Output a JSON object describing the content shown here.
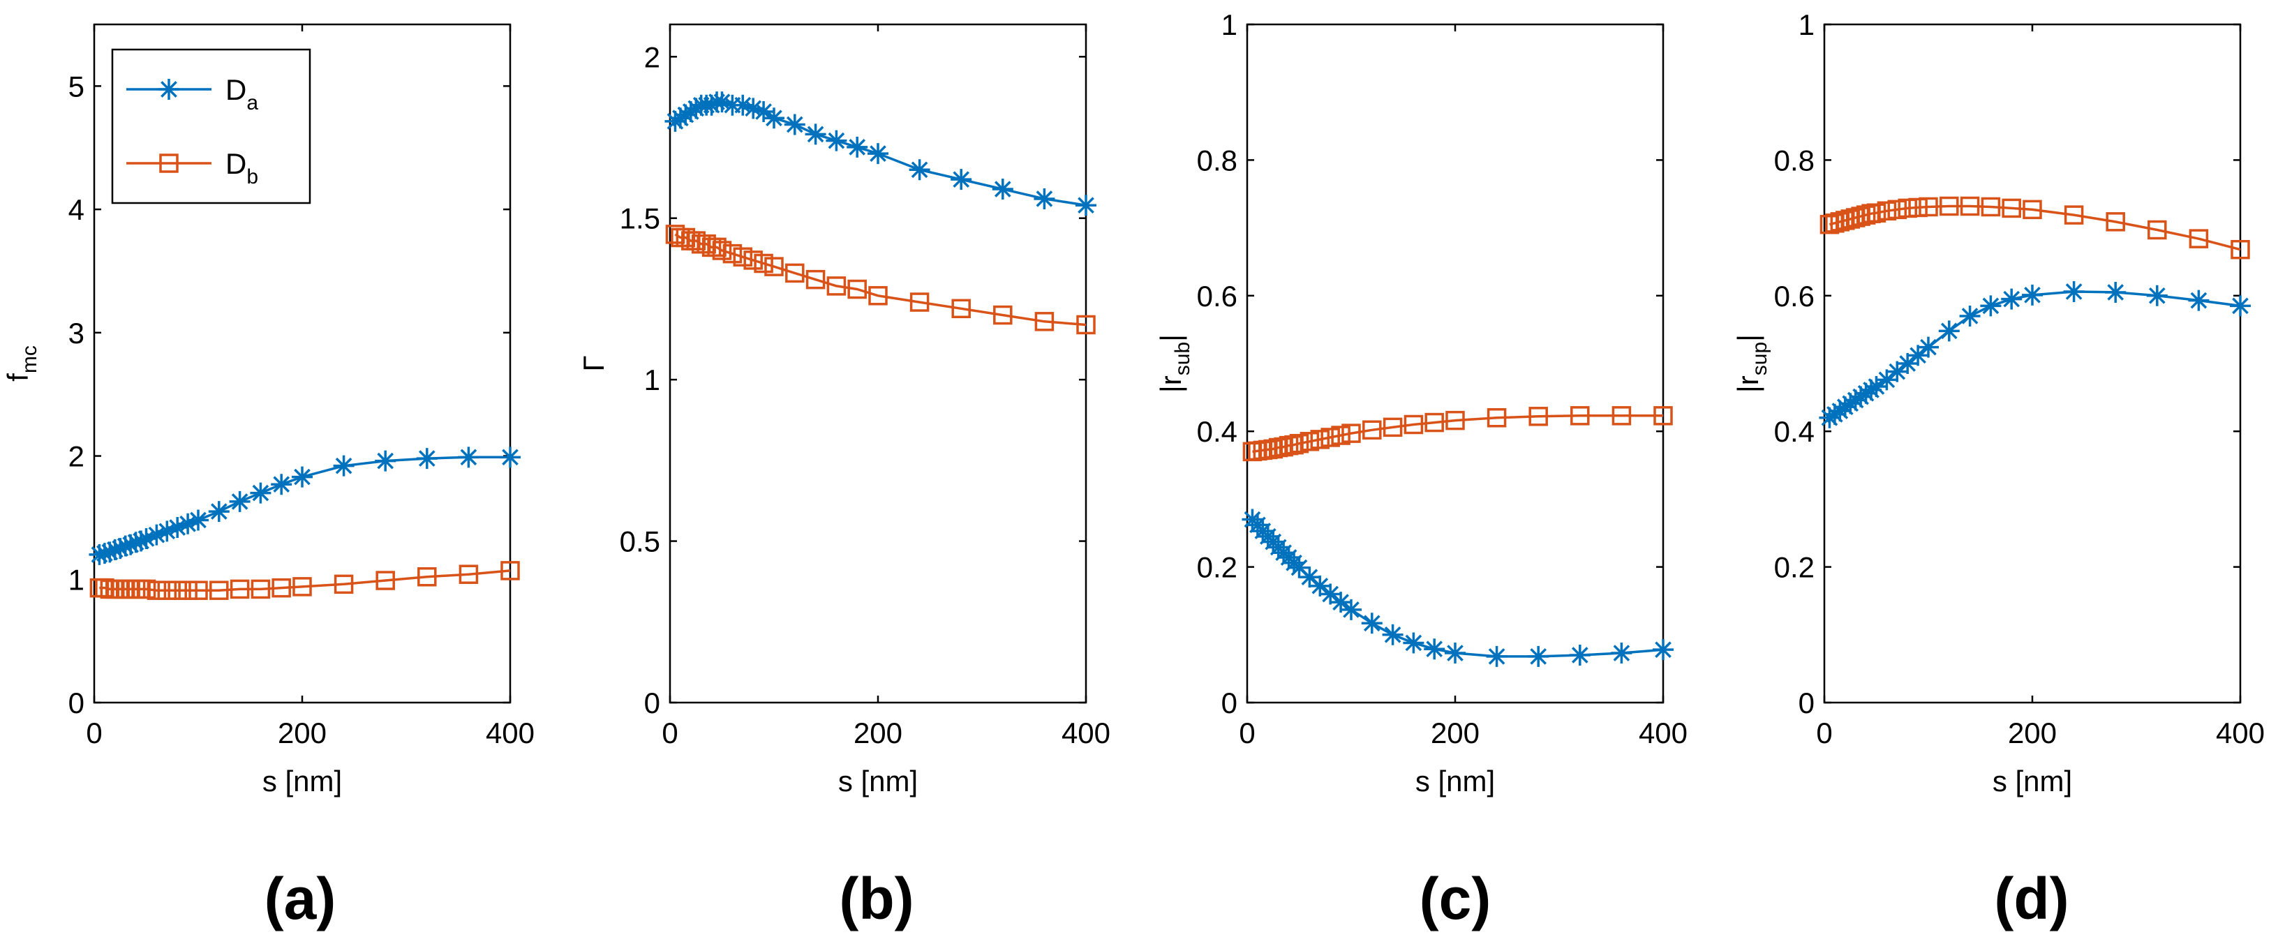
{
  "figure": {
    "panel_labels": [
      "(a)",
      "(b)",
      "(c)",
      "(d)"
    ]
  },
  "colors": {
    "series_a": "#0072BD",
    "series_b": "#D95319",
    "axis": "#000000"
  },
  "chart_data": [
    {
      "type": "line",
      "panel": "(a)",
      "xlabel": "s [nm]",
      "ylabel": {
        "main": "f",
        "sub": "mc"
      },
      "xlim": [
        0,
        400
      ],
      "ylim": [
        0,
        5.5
      ],
      "xticks": [
        0,
        200,
        400
      ],
      "yticks": [
        0,
        1,
        2,
        3,
        4,
        5
      ],
      "legend": {
        "placement": "top-left",
        "entries": [
          {
            "main": "D",
            "sub": "a",
            "marker": "asterisk"
          },
          {
            "main": "D",
            "sub": "b",
            "marker": "square"
          }
        ]
      },
      "series": [
        {
          "name": "D_a",
          "marker": "asterisk",
          "x": [
            5,
            10,
            15,
            20,
            25,
            30,
            35,
            40,
            45,
            50,
            60,
            70,
            80,
            90,
            100,
            120,
            140,
            160,
            180,
            200,
            240,
            280,
            320,
            360,
            400
          ],
          "y": [
            1.2,
            1.21,
            1.22,
            1.24,
            1.25,
            1.27,
            1.28,
            1.3,
            1.31,
            1.33,
            1.36,
            1.39,
            1.42,
            1.45,
            1.48,
            1.55,
            1.63,
            1.7,
            1.77,
            1.83,
            1.92,
            1.96,
            1.98,
            1.99,
            1.99
          ]
        },
        {
          "name": "D_b",
          "marker": "square",
          "x": [
            5,
            10,
            15,
            20,
            25,
            30,
            35,
            40,
            45,
            50,
            60,
            70,
            80,
            90,
            100,
            120,
            140,
            160,
            180,
            200,
            240,
            280,
            320,
            360,
            400
          ],
          "y": [
            0.93,
            0.93,
            0.92,
            0.92,
            0.92,
            0.92,
            0.92,
            0.92,
            0.92,
            0.92,
            0.91,
            0.91,
            0.91,
            0.91,
            0.91,
            0.91,
            0.92,
            0.92,
            0.93,
            0.94,
            0.96,
            0.99,
            1.02,
            1.04,
            1.07
          ]
        }
      ]
    },
    {
      "type": "line",
      "panel": "(b)",
      "xlabel": "s [nm]",
      "ylabel": {
        "main": "Γ",
        "sub": ""
      },
      "xlim": [
        0,
        400
      ],
      "ylim": [
        0,
        2.1
      ],
      "xticks": [
        0,
        200,
        400
      ],
      "yticks": [
        0,
        0.5,
        1,
        1.5,
        2
      ],
      "series": [
        {
          "name": "D_a",
          "marker": "asterisk",
          "x": [
            5,
            10,
            15,
            20,
            25,
            30,
            35,
            40,
            45,
            50,
            60,
            70,
            80,
            90,
            100,
            120,
            140,
            160,
            180,
            200,
            240,
            280,
            320,
            360,
            400
          ],
          "y": [
            1.8,
            1.81,
            1.82,
            1.83,
            1.84,
            1.85,
            1.85,
            1.85,
            1.86,
            1.86,
            1.85,
            1.85,
            1.84,
            1.83,
            1.81,
            1.79,
            1.76,
            1.74,
            1.72,
            1.7,
            1.65,
            1.62,
            1.59,
            1.56,
            1.54
          ]
        },
        {
          "name": "D_b",
          "marker": "square",
          "x": [
            5,
            10,
            15,
            20,
            25,
            30,
            35,
            40,
            45,
            50,
            60,
            70,
            80,
            90,
            100,
            120,
            140,
            160,
            180,
            200,
            240,
            280,
            320,
            360,
            400
          ],
          "y": [
            1.45,
            1.44,
            1.44,
            1.43,
            1.43,
            1.42,
            1.42,
            1.41,
            1.41,
            1.4,
            1.39,
            1.38,
            1.37,
            1.36,
            1.35,
            1.33,
            1.31,
            1.29,
            1.28,
            1.26,
            1.24,
            1.22,
            1.2,
            1.18,
            1.17
          ]
        }
      ]
    },
    {
      "type": "line",
      "panel": "(c)",
      "xlabel": "s [nm]",
      "ylabel": {
        "main": "|r",
        "sub": "sub",
        "suffix": "|"
      },
      "xlim": [
        0,
        400
      ],
      "ylim": [
        0,
        1
      ],
      "xticks": [
        0,
        200,
        400
      ],
      "yticks": [
        0,
        0.2,
        0.4,
        0.6,
        0.8,
        1
      ],
      "series": [
        {
          "name": "D_a",
          "marker": "asterisk",
          "x": [
            5,
            10,
            15,
            20,
            25,
            30,
            35,
            40,
            45,
            50,
            60,
            70,
            80,
            90,
            100,
            120,
            140,
            160,
            180,
            200,
            240,
            280,
            320,
            360,
            400
          ],
          "y": [
            0.27,
            0.262,
            0.253,
            0.245,
            0.237,
            0.229,
            0.221,
            0.214,
            0.206,
            0.199,
            0.185,
            0.172,
            0.16,
            0.148,
            0.137,
            0.117,
            0.1,
            0.088,
            0.079,
            0.073,
            0.068,
            0.068,
            0.07,
            0.073,
            0.078
          ]
        },
        {
          "name": "D_b",
          "marker": "square",
          "x": [
            5,
            10,
            15,
            20,
            25,
            30,
            35,
            40,
            45,
            50,
            60,
            70,
            80,
            90,
            100,
            120,
            140,
            160,
            180,
            200,
            240,
            280,
            320,
            360,
            400
          ],
          "y": [
            0.37,
            0.371,
            0.372,
            0.373,
            0.374,
            0.376,
            0.377,
            0.379,
            0.38,
            0.382,
            0.385,
            0.388,
            0.391,
            0.394,
            0.397,
            0.402,
            0.406,
            0.41,
            0.413,
            0.416,
            0.42,
            0.422,
            0.423,
            0.423,
            0.423
          ]
        }
      ]
    },
    {
      "type": "line",
      "panel": "(d)",
      "xlabel": "s [nm]",
      "ylabel": {
        "main": "|r",
        "sub": "sup",
        "suffix": "|"
      },
      "xlim": [
        0,
        400
      ],
      "ylim": [
        0,
        1
      ],
      "xticks": [
        0,
        200,
        400
      ],
      "yticks": [
        0,
        0.2,
        0.4,
        0.6,
        0.8,
        1
      ],
      "series": [
        {
          "name": "D_a",
          "marker": "asterisk",
          "x": [
            5,
            10,
            15,
            20,
            25,
            30,
            35,
            40,
            45,
            50,
            60,
            70,
            80,
            90,
            100,
            120,
            140,
            160,
            180,
            200,
            240,
            280,
            320,
            360,
            400
          ],
          "y": [
            0.42,
            0.425,
            0.43,
            0.436,
            0.441,
            0.446,
            0.451,
            0.456,
            0.461,
            0.466,
            0.476,
            0.488,
            0.5,
            0.512,
            0.524,
            0.548,
            0.57,
            0.585,
            0.595,
            0.601,
            0.606,
            0.605,
            0.6,
            0.593,
            0.585
          ]
        },
        {
          "name": "D_b",
          "marker": "square",
          "x": [
            5,
            10,
            15,
            20,
            25,
            30,
            35,
            40,
            45,
            50,
            60,
            70,
            80,
            90,
            100,
            120,
            140,
            160,
            180,
            200,
            240,
            280,
            320,
            360,
            400
          ],
          "y": [
            0.705,
            0.707,
            0.709,
            0.711,
            0.713,
            0.715,
            0.717,
            0.719,
            0.721,
            0.722,
            0.725,
            0.727,
            0.729,
            0.73,
            0.731,
            0.732,
            0.732,
            0.731,
            0.729,
            0.727,
            0.719,
            0.709,
            0.697,
            0.684,
            0.668
          ]
        }
      ]
    }
  ]
}
